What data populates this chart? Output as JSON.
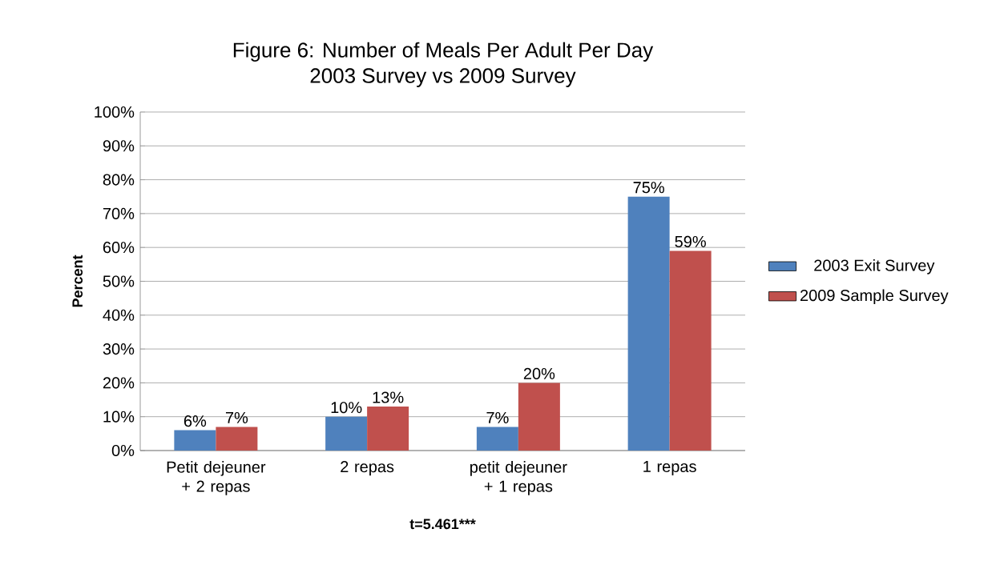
{
  "chart_data": {
    "type": "bar",
    "title": "Figure 6: Number of Meals Per Adult Per Day",
    "subtitle": "2003 Survey vs 2009 Survey",
    "xlabel": "t=5.461***",
    "ylabel": "Percent",
    "categories": [
      "Petit dejeuner + 2 repas",
      "2 repas",
      "petit dejeuner + 1 repas",
      "1 repas"
    ],
    "series": [
      {
        "name": "2003 Exit Survey",
        "color": "#4f81bd",
        "values": [
          6,
          10,
          7,
          75
        ],
        "value_labels": [
          "6%",
          "10%",
          "7%",
          "75%"
        ]
      },
      {
        "name": "2009 Sample Survey",
        "color": "#c0504d",
        "values": [
          7,
          13,
          20,
          59
        ],
        "value_labels": [
          "7%",
          "13%",
          "20%",
          "59%"
        ]
      }
    ],
    "ylim": [
      0,
      100
    ],
    "yticks": [
      {
        "value": 0,
        "label": "0%"
      },
      {
        "value": 10,
        "label": "10%"
      },
      {
        "value": 20,
        "label": "20%"
      },
      {
        "value": 30,
        "label": "30%"
      },
      {
        "value": 40,
        "label": "40%"
      },
      {
        "value": 50,
        "label": "50%"
      },
      {
        "value": 60,
        "label": "60%"
      },
      {
        "value": 70,
        "label": "70%"
      },
      {
        "value": 80,
        "label": "80%"
      },
      {
        "value": 90,
        "label": "90%"
      },
      {
        "value": 100,
        "label": "100%"
      }
    ],
    "grid": "y",
    "legend": "right"
  }
}
